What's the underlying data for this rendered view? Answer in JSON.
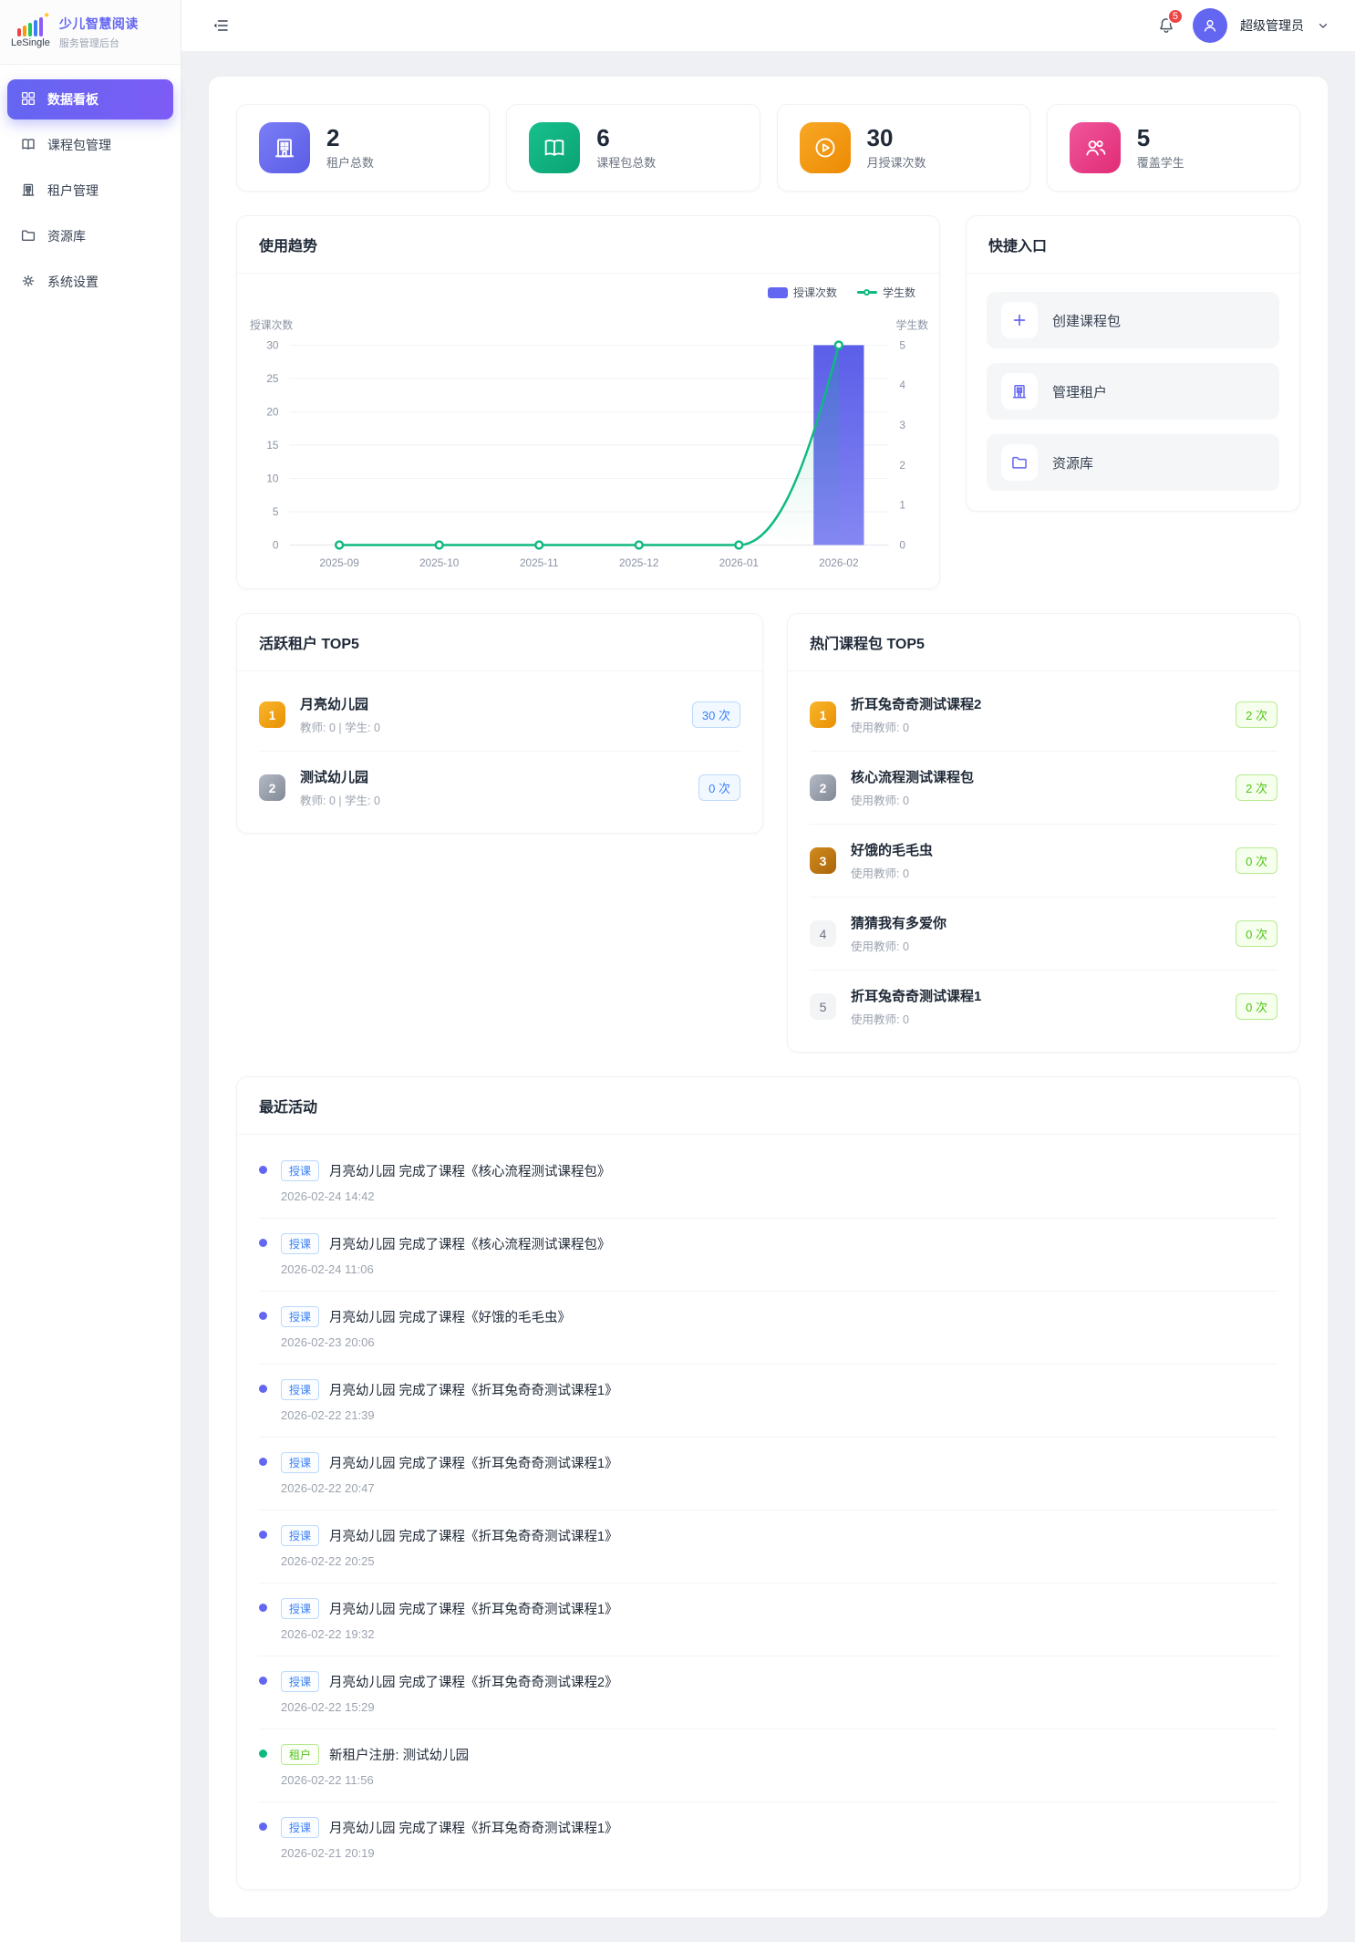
{
  "app": {
    "logo_name": "LeSingle",
    "title": "少儿智慧阅读",
    "subtitle": "服务管理后台"
  },
  "sidebar": {
    "items": [
      {
        "label": "数据看板",
        "icon": "dashboard-icon",
        "active": true
      },
      {
        "label": "课程包管理",
        "icon": "book-icon",
        "active": false
      },
      {
        "label": "租户管理",
        "icon": "building-icon",
        "active": false
      },
      {
        "label": "资源库",
        "icon": "folder-icon",
        "active": false
      },
      {
        "label": "系统设置",
        "icon": "gear-icon",
        "active": false
      }
    ]
  },
  "header": {
    "notification_count": "5",
    "user_name": "超级管理员"
  },
  "colors": {
    "primary": "#6366f1",
    "bar_series": "#6366f1",
    "line_series": "#10b981",
    "notification_badge": "#ef4444"
  },
  "stats": [
    {
      "value": "2",
      "label": "租户总数",
      "icon": "building-icon",
      "color": "#6366f1"
    },
    {
      "value": "6",
      "label": "课程包总数",
      "icon": "book-icon",
      "color": "#10b981"
    },
    {
      "value": "30",
      "label": "月授课次数",
      "icon": "play-icon",
      "color": "#f59e0b"
    },
    {
      "value": "5",
      "label": "覆盖学生",
      "icon": "users-icon",
      "color": "#ec4899"
    }
  ],
  "trend": {
    "title": "使用趋势"
  },
  "chart_data": {
    "type": "bar",
    "subtype": "bar+line dual axis",
    "categories": [
      "2025-09",
      "2025-10",
      "2025-11",
      "2025-12",
      "2026-01",
      "2026-02"
    ],
    "series": [
      {
        "name": "授课次数",
        "type": "bar",
        "axis": "left",
        "values": [
          0,
          0,
          0,
          0,
          0,
          30
        ],
        "color": "#6366f1"
      },
      {
        "name": "学生数",
        "type": "line",
        "axis": "right",
        "values": [
          0,
          0,
          0,
          0,
          0,
          5
        ],
        "color": "#10b981"
      }
    ],
    "left_axis": {
      "name": "授课次数",
      "min": 0,
      "max": 30,
      "ticks": [
        0,
        5,
        10,
        15,
        20,
        25,
        30
      ]
    },
    "right_axis": {
      "name": "学生数",
      "min": 0,
      "max": 5,
      "ticks": [
        0,
        1,
        2,
        3,
        4,
        5
      ]
    },
    "legend": [
      "授课次数",
      "学生数"
    ],
    "legend_position": "top-right",
    "grid": true
  },
  "quick": {
    "title": "快捷入口",
    "items": [
      {
        "label": "创建课程包",
        "icon": "plus-icon"
      },
      {
        "label": "管理租户",
        "icon": "building-icon"
      },
      {
        "label": "资源库",
        "icon": "folder-icon"
      }
    ]
  },
  "tenants": {
    "title": "活跃租户 TOP5",
    "items": [
      {
        "rank": "1",
        "name": "月亮幼儿园",
        "sub": "教师: 0 | 学生: 0",
        "badge": "30 次"
      },
      {
        "rank": "2",
        "name": "测试幼儿园",
        "sub": "教师: 0 | 学生: 0",
        "badge": "0 次"
      }
    ]
  },
  "courses": {
    "title": "热门课程包 TOP5",
    "items": [
      {
        "rank": "1",
        "name": "折耳兔奇奇测试课程2",
        "sub": "使用教师: 0",
        "badge": "2 次"
      },
      {
        "rank": "2",
        "name": "核心流程测试课程包",
        "sub": "使用教师: 0",
        "badge": "2 次"
      },
      {
        "rank": "3",
        "name": "好饿的毛毛虫",
        "sub": "使用教师: 0",
        "badge": "0 次"
      },
      {
        "rank": "4",
        "name": "猜猜我有多爱你",
        "sub": "使用教师: 0",
        "badge": "0 次"
      },
      {
        "rank": "5",
        "name": "折耳兔奇奇测试课程1",
        "sub": "使用教师: 0",
        "badge": "0 次"
      }
    ]
  },
  "activities": {
    "title": "最近活动",
    "items": [
      {
        "tag": "授课",
        "type": "blue",
        "text": "月亮幼儿园 完成了课程《核心流程测试课程包》",
        "time": "2026-02-24 14:42"
      },
      {
        "tag": "授课",
        "type": "blue",
        "text": "月亮幼儿园 完成了课程《核心流程测试课程包》",
        "time": "2026-02-24 11:06"
      },
      {
        "tag": "授课",
        "type": "blue",
        "text": "月亮幼儿园 完成了课程《好饿的毛毛虫》",
        "time": "2026-02-23 20:06"
      },
      {
        "tag": "授课",
        "type": "blue",
        "text": "月亮幼儿园 完成了课程《折耳兔奇奇测试课程1》",
        "time": "2026-02-22 21:39"
      },
      {
        "tag": "授课",
        "type": "blue",
        "text": "月亮幼儿园 完成了课程《折耳兔奇奇测试课程1》",
        "time": "2026-02-22 20:47"
      },
      {
        "tag": "授课",
        "type": "blue",
        "text": "月亮幼儿园 完成了课程《折耳兔奇奇测试课程1》",
        "time": "2026-02-22 20:25"
      },
      {
        "tag": "授课",
        "type": "blue",
        "text": "月亮幼儿园 完成了课程《折耳兔奇奇测试课程1》",
        "time": "2026-02-22 19:32"
      },
      {
        "tag": "授课",
        "type": "blue",
        "text": "月亮幼儿园 完成了课程《折耳兔奇奇测试课程2》",
        "time": "2026-02-22 15:29"
      },
      {
        "tag": "租户",
        "type": "green",
        "text": "新租户注册: 测试幼儿园",
        "time": "2026-02-22 11:56"
      },
      {
        "tag": "授课",
        "type": "blue",
        "text": "月亮幼儿园 完成了课程《折耳兔奇奇测试课程1》",
        "time": "2026-02-21 20:19"
      }
    ]
  }
}
